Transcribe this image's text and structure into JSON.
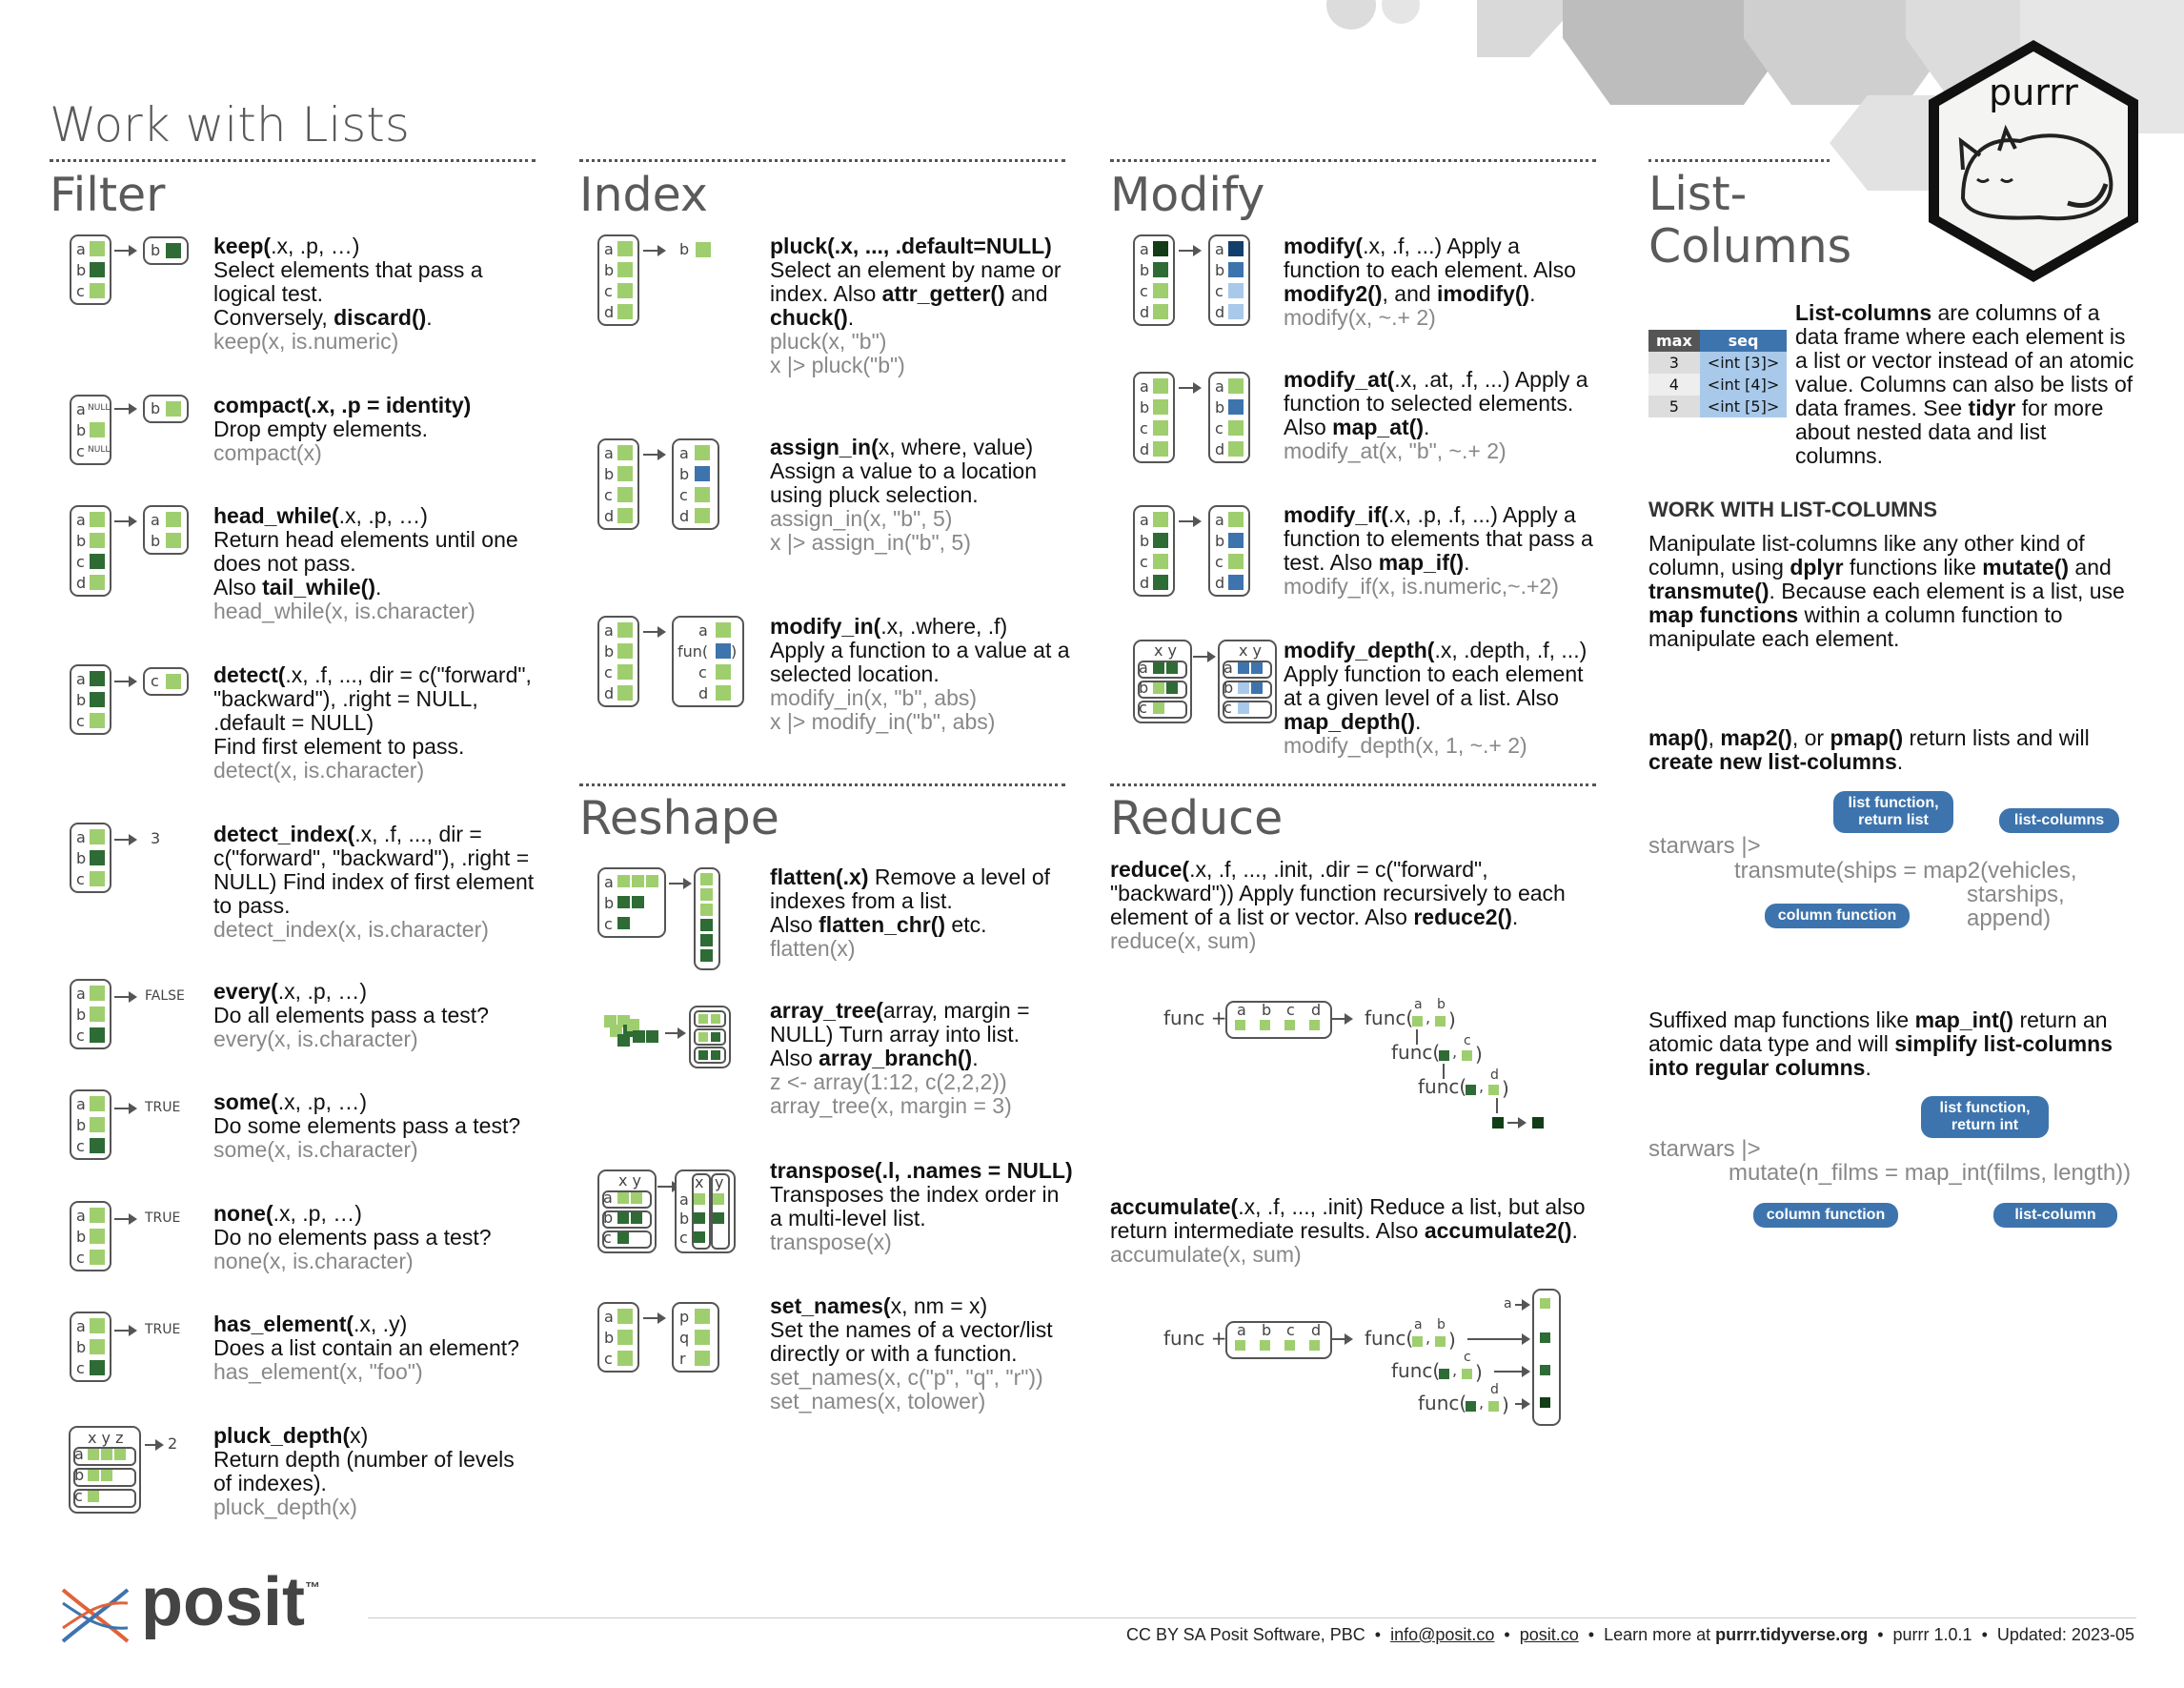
{
  "page_title": "Work with Lists",
  "sections": {
    "filter": "Filter",
    "index": "Index",
    "modify": "Modify",
    "reshape": "Reshape",
    "reduce": "Reduce",
    "list_columns": "List-\nColumns"
  },
  "logo": {
    "name": "purrr"
  },
  "filter": [
    {
      "fn": "keep(",
      "args": ".x, .p, …)",
      "desc": "Select elements that pass a logical test.",
      "desc2": "Conversely, ",
      "bold2": "discard()",
      "tail2": ".",
      "ex": "keep(x, is.numeric)"
    },
    {
      "fn": "compact(",
      ".args": "",
      "args": ".x, .p = identity)",
      "desc": "Drop empty elements.",
      "ex": "compact(x)"
    },
    {
      "fn": "head_while(",
      "args": ".x, .p, …)",
      "desc": "Return head elements until one does not pass.",
      "desc2": "Also ",
      "bold2": "tail_while()",
      "tail2": ".",
      "ex": "head_while(x, is.character)"
    },
    {
      "fn": "detect(",
      "args": ".x, .f, ..., dir = c(\"forward\", \"backward\"), .right = NULL, .default = NULL)",
      "desc": "Find first element to pass.",
      "ex": "detect(x,  is.character)"
    },
    {
      "fn": "detect_index(",
      "args": ".x, .f, ..., dir = c(\"forward\", \"backward\"), .right = NULL)",
      "desc": " Find index of first element to pass.",
      "ex": "detect_index(x, is.character)"
    },
    {
      "fn": "every(",
      "args": ".x, .p, …)",
      "desc": "Do all elements pass a test?",
      "ex": "every(x, is.character)"
    },
    {
      "fn": "some(",
      "args": ".x, .p, …)",
      "desc": "Do some elements pass a test?",
      "ex": "some(x,  is.character)"
    },
    {
      "fn": "none(",
      "args": ".x, .p, …)",
      "desc": "Do no elements pass a test?",
      "ex": "none(x, is.character)"
    },
    {
      "fn": "has_element(",
      "args": ".x, .y)",
      "desc": "Does a list contain an element?",
      "ex": "has_element(x, \"foo\")"
    },
    {
      "fn": "pluck_depth(",
      "args": "x)",
      "desc": "Return depth (number of levels of indexes).",
      "ex": "pluck_depth(x)"
    }
  ],
  "filter_results": {
    "every": "FALSE",
    "some": "TRUE",
    "none": "TRUE",
    "has_element": "TRUE",
    "detect_index": "3",
    "pluck_depth": "2"
  },
  "index": [
    {
      "fn": "pluck(",
      "args": ".x, ..., .default=NULL)",
      "desc": "Select an element by name or index. Also ",
      "b1": "attr_getter()",
      "m1": " and ",
      "b2": "chuck()",
      "t": ".",
      "ex1": "pluck(x, \"b\")",
      "ex2": "x |> pluck(\"b\")"
    },
    {
      "fn": "assign_in(",
      "args": "x, where, value)",
      "desc": "Assign a value to a location using pluck selection.",
      "ex1": "assign_in(x, \"b\", 5)",
      "ex2": "x |> assign_in(\"b\", 5)"
    },
    {
      "fn": "modify_in(",
      "args": ".x, .where, .f)",
      "desc": "Apply a function to a value at a selected location.",
      "ex1": "modify_in(x, \"b\", abs)",
      "ex2": "x |> modify_in(\"b\", abs)"
    }
  ],
  "reshape": [
    {
      "fn": "flatten(",
      "args": ".x)",
      "desc": " Remove a level of indexes from a list.",
      "d2": "Also ",
      "b2": "flatten_chr()",
      "t2": " etc.",
      "ex1": "flatten(x)",
      "ex2": ""
    },
    {
      "fn": "array_tree(",
      "args": "array, margin = NULL)",
      "desc": " Turn array into list.",
      "d2": "Also ",
      "b2": "array_branch()",
      "t2": ".",
      "ex1": "z <- array(1:12, c(2,2,2))",
      "ex2": "array_tree(x, margin = 3)"
    },
    {
      "fn": "transpose(",
      "args": ".l, .names = NULL)",
      "desc": "Transposes the index order in a multi-level list.",
      "ex1": "transpose(x)",
      "ex2": ""
    },
    {
      "fn": "set_names(",
      "args": "x, nm = x)",
      "desc": "Set the names of a vector/list directly or with a function.",
      "ex1": "set_names(x, c(\"p\", \"q\", \"r\"))",
      "ex2": "set_names(x, tolower)"
    }
  ],
  "modify": [
    {
      "fn": "modify(",
      "args": ".x, .f, ...)",
      "desc": " Apply a function to each element. Also ",
      "b1": "modify2()",
      "m1": ", and ",
      "b2": "imodify()",
      "t": ".",
      "ex": "modify(x, ~.+ 2)"
    },
    {
      "fn": "modify_at(",
      "args": ".x, .at, .f, ...)",
      "desc": " Apply a function to selected elements. Also ",
      "b1": "map_at()",
      "m1": "",
      "b2": "",
      "t": ".",
      "ex": "modify_at(x, \"b\", ~.+ 2)"
    },
    {
      "fn": "modify_if(",
      "args": ".x, .p, .f, ...)",
      "desc": " Apply a function to elements that pass a test. Also ",
      "b1": "map_if()",
      "m1": "",
      "b2": "",
      "t": ".",
      "ex": "modify_if(x, is.numeric,~.+2)"
    },
    {
      "fn": "modify_depth(",
      "args": ".x, .depth, .f, ...)",
      "desc": "Apply function to each element at a given level of a list. Also ",
      "b1": "map_depth()",
      "m1": "",
      "b2": "",
      "t": ".",
      "ex": "modify_depth(x, 1, ~.+ 2)"
    }
  ],
  "reduce": [
    {
      "fn": "reduce(",
      "args": ".x, .f, ..., .init, .dir = c(\"forward\", \"backward\"))",
      "desc": " Apply function recursively to each element of a list or vector. Also ",
      "b1": "reduce2()",
      "t": ".",
      "ex": "reduce(x, sum)"
    },
    {
      "fn": "accumulate(",
      "args": ".x, .f, ..., .init)",
      "desc": " Reduce a list, but also return intermediate results. Also ",
      "b1": "accumulate2()",
      "t": ".",
      "ex": "accumulate(x, sum)"
    }
  ],
  "reduce_diagram": {
    "func_plus": "func +",
    "func": "func(",
    "letters": [
      "a",
      "b",
      "c",
      "d"
    ]
  },
  "list_columns": {
    "table_headers": [
      "max",
      "seq"
    ],
    "table_rows": [
      [
        "3",
        "<int [3]>"
      ],
      [
        "4",
        "<int [4]>"
      ],
      [
        "5",
        "<int [5]>"
      ]
    ],
    "intro_bold": "List-columns",
    "intro": " are columns of a data frame where each element is a list or vector instead of an atomic value. Columns can also be lists of data frames. See ",
    "intro_b2": "tidyr",
    "intro_t": " for more about nested data and list columns.",
    "subhead": "WORK WITH LIST-COLUMNS",
    "p1a": "Manipulate list-columns like any other kind of column, using ",
    "p1b": "dplyr",
    "p1c": " functions like ",
    "p1d": "mutate()",
    "p1e": " and ",
    "p1f": "transmute()",
    "p1g": ". Because each element is a list, use ",
    "p1h": "map functions",
    "p1i": " within a column function to manipulate each element.",
    "p2a": "map()",
    "p2b": ", ",
    "p2c": "map2()",
    "p2d": ", or ",
    "p2e": "pmap()",
    "p2f": " return lists and will ",
    "p2g": "create new list-columns",
    "p2h": ".",
    "code1": [
      "starwars |>",
      "transmute(ships = map2(vehicles,",
      "starships,",
      "append)"
    ],
    "bubbles1": [
      "list function, return list",
      "list-columns",
      "column function"
    ],
    "p3a": "Suffixed map functions like ",
    "p3b": "map_int()",
    "p3c": " return an atomic data type and will ",
    "p3d": "simplify list-columns into regular columns",
    "p3e": ".",
    "code2": [
      "starwars |>",
      "mutate(n_films = map_int(films, length))"
    ],
    "bubbles2": [
      "list function, return int",
      "column function",
      "list-column"
    ]
  },
  "footer": {
    "brand": "posit",
    "tm": "™",
    "license": "CC BY SA Posit Software, PBC",
    "email": "info@posit.co",
    "site": "posit.co",
    "learn": "Learn more at ",
    "learn_b": "purrr.tidyverse.org",
    "version": "purrr  1.0.1",
    "updated": "Updated:  2023-05"
  }
}
